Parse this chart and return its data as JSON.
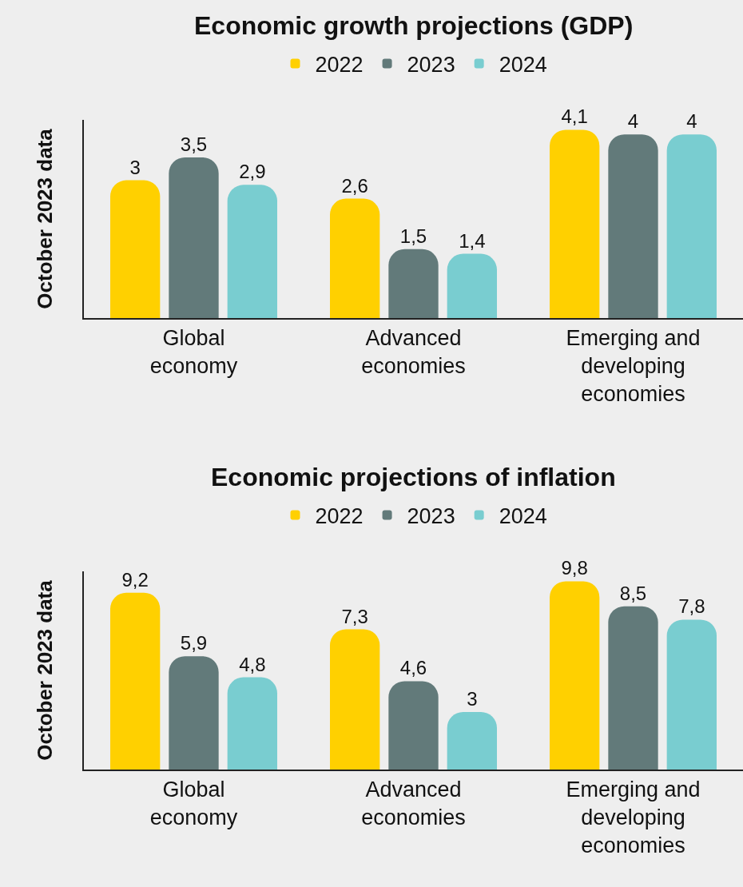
{
  "chart_data": [
    {
      "type": "bar",
      "title": "Economic growth projections (GDP)",
      "ylabel": "October 2023 data",
      "categories": [
        "Global economy",
        "Advanced economies",
        "Emerging and developing economies"
      ],
      "legend": "top",
      "series": [
        {
          "name": "2022",
          "color": "#ffd000",
          "values": [
            3,
            2.6,
            4.1
          ],
          "value_labels": [
            "3",
            "2,6",
            "4,1"
          ]
        },
        {
          "name": "2023",
          "color": "#627a7a",
          "values": [
            3.5,
            1.5,
            4
          ],
          "value_labels": [
            "3,5",
            "1,5",
            "4"
          ]
        },
        {
          "name": "2024",
          "color": "#79cdd0",
          "values": [
            2.9,
            1.4,
            4
          ],
          "value_labels": [
            "2,9",
            "1,4",
            "4"
          ]
        }
      ]
    },
    {
      "type": "bar",
      "title": "Economic projections of inflation",
      "ylabel": "October 2023 data",
      "categories": [
        "Global economy",
        "Advanced economies",
        "Emerging and developing economies"
      ],
      "legend": "top",
      "series": [
        {
          "name": "2022",
          "color": "#ffd000",
          "values": [
            9.2,
            7.3,
            9.8
          ],
          "value_labels": [
            "9,2",
            "7,3",
            "9,8"
          ]
        },
        {
          "name": "2023",
          "color": "#627a7a",
          "values": [
            5.9,
            4.6,
            8.5
          ],
          "value_labels": [
            "5,9",
            "4,6",
            "8,5"
          ]
        },
        {
          "name": "2024",
          "color": "#79cdd0",
          "values": [
            4.8,
            3,
            7.8
          ],
          "value_labels": [
            "4,8",
            "3",
            "7,8"
          ]
        }
      ]
    }
  ]
}
